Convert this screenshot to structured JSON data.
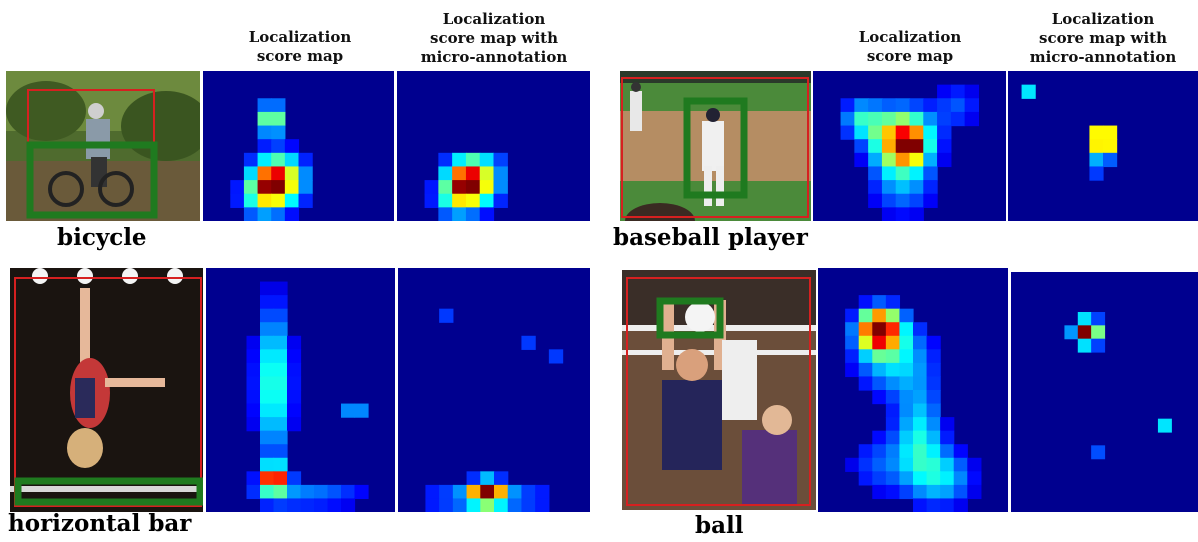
{
  "column_headers": {
    "score_map": "Localization\nscore map",
    "score_map_micro": "Localization\nscore map with\nmicro-annotation"
  },
  "examples": [
    {
      "label": "bicycle"
    },
    {
      "label": "baseball player"
    },
    {
      "label": "horizontal bar"
    },
    {
      "label": "ball"
    }
  ],
  "colors": {
    "red_box": "#d62020",
    "green_box": "#1f7a1f",
    "heat_background": "#00008f"
  }
}
